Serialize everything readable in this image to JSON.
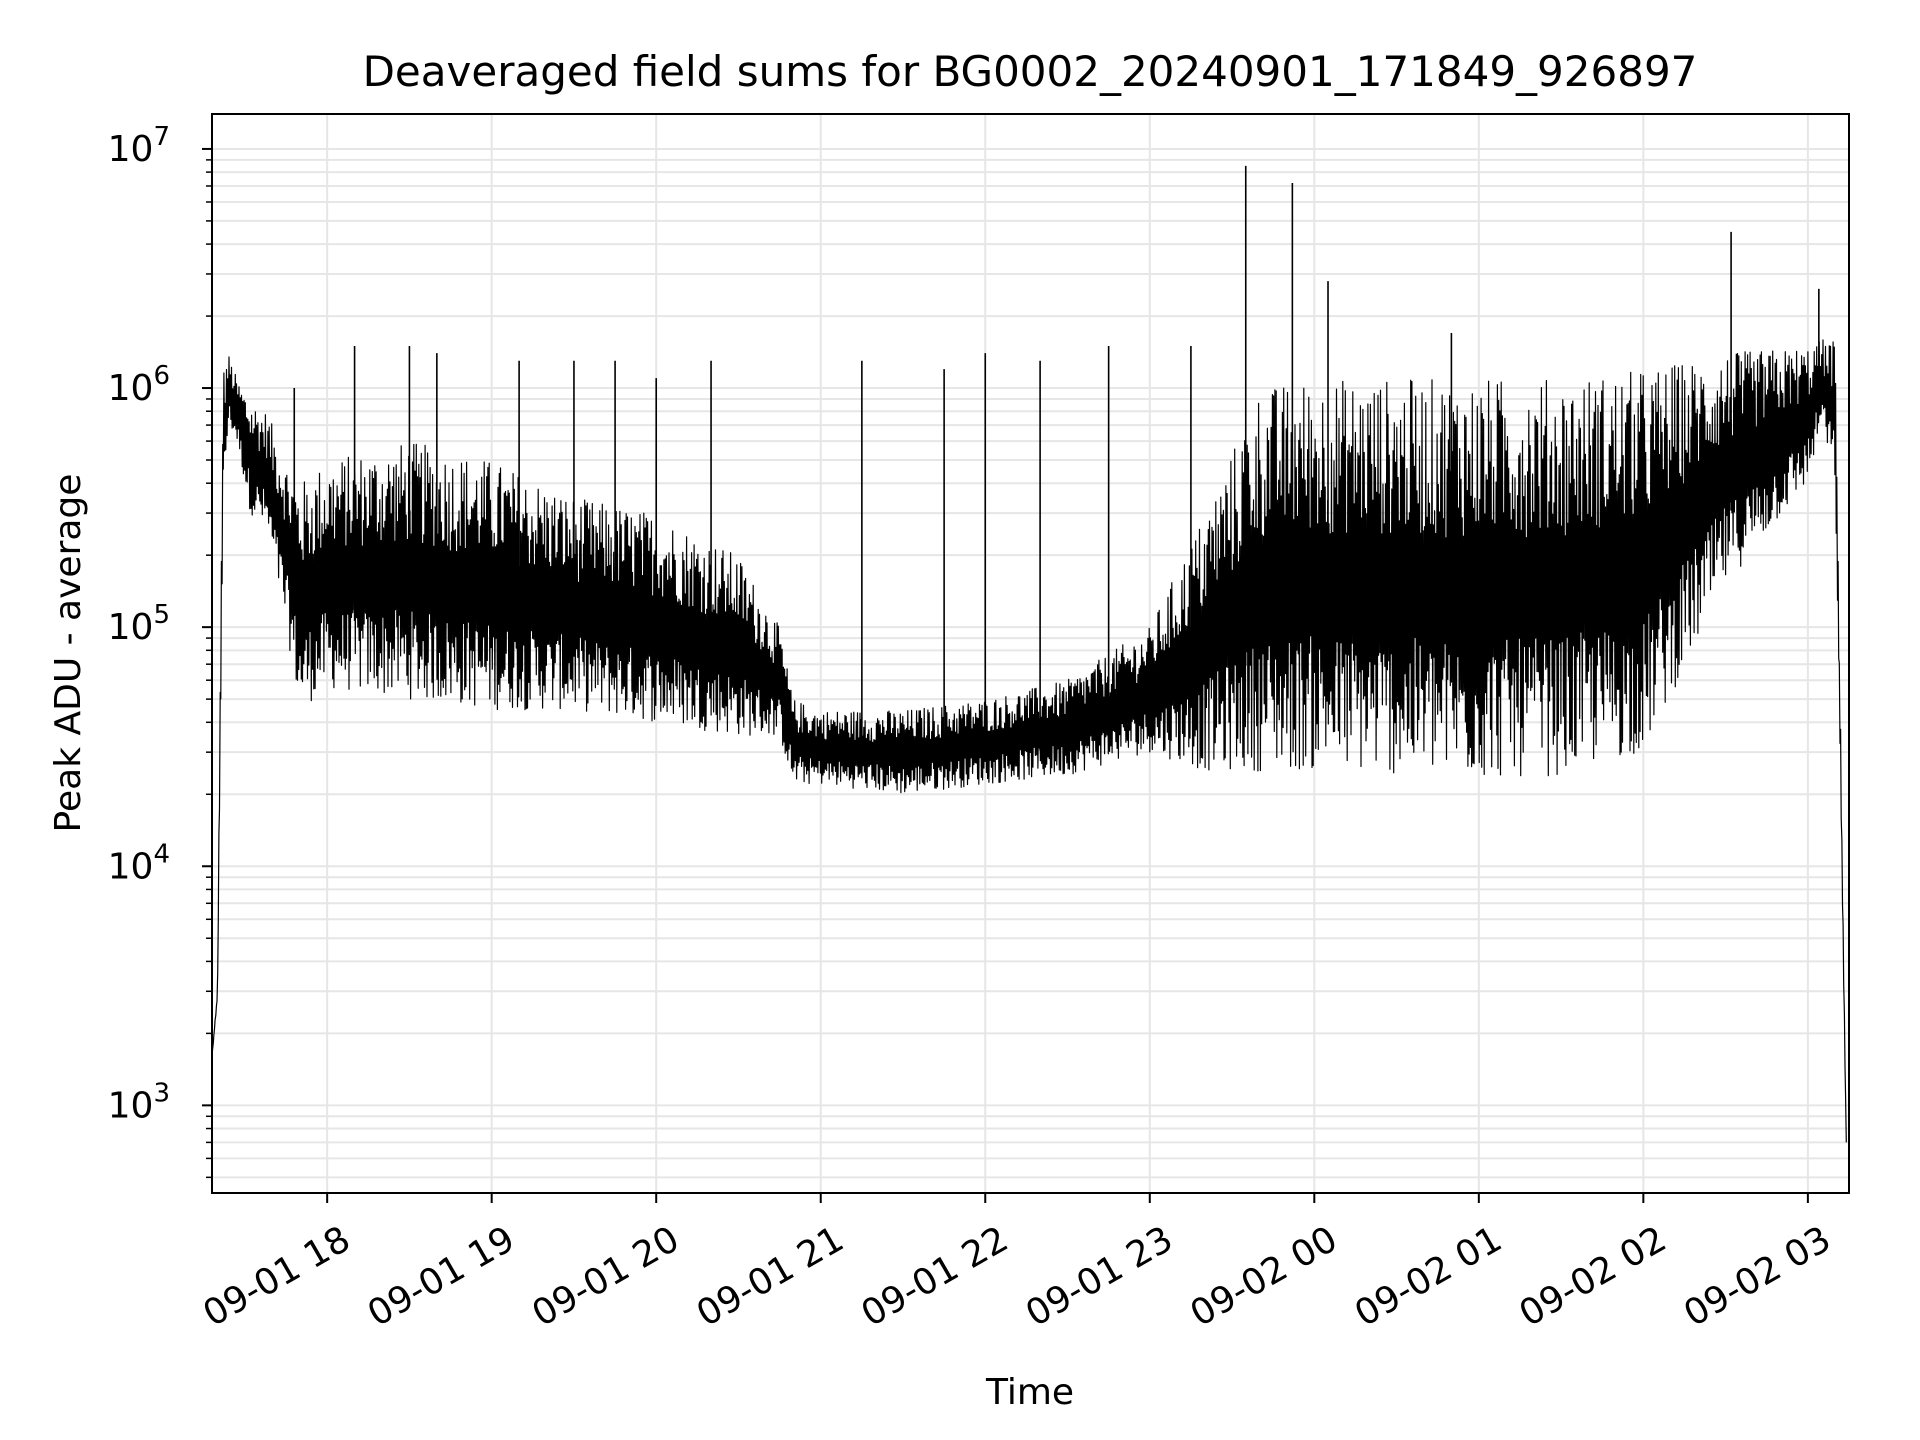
{
  "chart_data": {
    "type": "line",
    "title": "Deaveraged field sums for BG0002_20240901_171849_926897",
    "xlabel": "Time",
    "ylabel": "Peak ADU - average",
    "yscale": "log",
    "ylim": [
      430,
      14000000
    ],
    "xlim": [
      "2024-09-01 17:18",
      "2024-09-02 03:15"
    ],
    "grid": true,
    "legend": "none",
    "line_color": "#000000",
    "grid_color": "#e6e6e6",
    "x_ticks": [
      {
        "value": "2024-09-01 18:00",
        "label": "09-01 18"
      },
      {
        "value": "2024-09-01 19:00",
        "label": "09-01 19"
      },
      {
        "value": "2024-09-01 20:00",
        "label": "09-01 20"
      },
      {
        "value": "2024-09-01 21:00",
        "label": "09-01 21"
      },
      {
        "value": "2024-09-01 22:00",
        "label": "09-01 22"
      },
      {
        "value": "2024-09-01 23:00",
        "label": "09-01 23"
      },
      {
        "value": "2024-09-02 00:00",
        "label": "09-02 00"
      },
      {
        "value": "2024-09-02 01:00",
        "label": "09-02 01"
      },
      {
        "value": "2024-09-02 02:00",
        "label": "09-02 02"
      },
      {
        "value": "2024-09-02 03:00",
        "label": "09-02 03"
      }
    ],
    "y_ticks": [
      {
        "value": 1000,
        "base": "10",
        "exp": "3"
      },
      {
        "value": 10000,
        "base": "10",
        "exp": "4"
      },
      {
        "value": 100000,
        "base": "10",
        "exp": "5"
      },
      {
        "value": 1000000,
        "base": "10",
        "exp": "6"
      },
      {
        "value": 10000000,
        "base": "10",
        "exp": "7"
      }
    ],
    "envelope": [
      {
        "x": "2024-09-01 17:18",
        "low": 1600,
        "high": 1600
      },
      {
        "x": "2024-09-01 17:20",
        "low": 2800,
        "high": 3000
      },
      {
        "x": "2024-09-01 17:22",
        "low": 300000,
        "high": 1200000
      },
      {
        "x": "2024-09-01 17:24",
        "low": 700000,
        "high": 1400000
      },
      {
        "x": "2024-09-01 17:27",
        "low": 600000,
        "high": 1100000
      },
      {
        "x": "2024-09-01 17:32",
        "low": 300000,
        "high": 900000
      },
      {
        "x": "2024-09-01 17:38",
        "low": 250000,
        "high": 800000
      },
      {
        "x": "2024-09-01 17:45",
        "low": 100000,
        "high": 500000
      },
      {
        "x": "2024-09-01 17:50",
        "low": 45000,
        "high": 400000
      },
      {
        "x": "2024-09-01 18:00",
        "low": 55000,
        "high": 500000
      },
      {
        "x": "2024-09-01 18:30",
        "low": 50000,
        "high": 600000
      },
      {
        "x": "2024-09-01 19:00",
        "low": 45000,
        "high": 500000
      },
      {
        "x": "2024-09-01 19:30",
        "low": 45000,
        "high": 350000
      },
      {
        "x": "2024-09-01 20:00",
        "low": 40000,
        "high": 300000
      },
      {
        "x": "2024-09-01 20:30",
        "low": 35000,
        "high": 200000
      },
      {
        "x": "2024-09-01 20:45",
        "low": 35000,
        "high": 100000
      },
      {
        "x": "2024-09-01 20:50",
        "low": 22000,
        "high": 50000
      },
      {
        "x": "2024-09-01 21:00",
        "low": 22000,
        "high": 45000
      },
      {
        "x": "2024-09-01 21:30",
        "low": 20000,
        "high": 45000
      },
      {
        "x": "2024-09-01 22:00",
        "low": 22000,
        "high": 50000
      },
      {
        "x": "2024-09-01 22:30",
        "low": 24000,
        "high": 60000
      },
      {
        "x": "2024-09-01 23:00",
        "low": 30000,
        "high": 100000
      },
      {
        "x": "2024-09-01 23:20",
        "low": 25000,
        "high": 300000
      },
      {
        "x": "2024-09-01 23:40",
        "low": 25000,
        "high": 1000000
      },
      {
        "x": "2024-09-02 00:00",
        "low": 25000,
        "high": 1100000
      },
      {
        "x": "2024-09-02 00:30",
        "low": 24000,
        "high": 1100000
      },
      {
        "x": "2024-09-02 01:00",
        "low": 23000,
        "high": 1100000
      },
      {
        "x": "2024-09-02 01:30",
        "low": 24000,
        "high": 1100000
      },
      {
        "x": "2024-09-02 02:00",
        "low": 30000,
        "high": 1200000
      },
      {
        "x": "2024-09-02 02:30",
        "low": 150000,
        "high": 1400000
      },
      {
        "x": "2024-09-02 03:00",
        "low": 400000,
        "high": 1500000
      },
      {
        "x": "2024-09-02 03:05",
        "low": 700000,
        "high": 1600000
      },
      {
        "x": "2024-09-02 03:10",
        "low": 400000,
        "high": 1600000
      },
      {
        "x": "2024-09-02 03:14",
        "low": 700,
        "high": 700
      }
    ],
    "spikes": [
      {
        "x": "2024-09-01 17:48",
        "y": 1000000
      },
      {
        "x": "2024-09-01 18:10",
        "y": 1500000
      },
      {
        "x": "2024-09-01 18:30",
        "y": 1500000
      },
      {
        "x": "2024-09-01 18:40",
        "y": 1400000
      },
      {
        "x": "2024-09-01 19:10",
        "y": 1300000
      },
      {
        "x": "2024-09-01 19:30",
        "y": 1300000
      },
      {
        "x": "2024-09-01 19:45",
        "y": 1300000
      },
      {
        "x": "2024-09-01 20:00",
        "y": 1100000
      },
      {
        "x": "2024-09-01 20:20",
        "y": 1300000
      },
      {
        "x": "2024-09-01 21:15",
        "y": 1300000
      },
      {
        "x": "2024-09-01 21:45",
        "y": 1200000
      },
      {
        "x": "2024-09-01 22:00",
        "y": 1400000
      },
      {
        "x": "2024-09-01 22:20",
        "y": 1300000
      },
      {
        "x": "2024-09-01 22:45",
        "y": 1500000
      },
      {
        "x": "2024-09-01 23:15",
        "y": 1500000
      },
      {
        "x": "2024-09-01 23:35",
        "y": 8500000
      },
      {
        "x": "2024-09-01 23:52",
        "y": 7200000
      },
      {
        "x": "2024-09-02 00:05",
        "y": 2800000
      },
      {
        "x": "2024-09-02 00:50",
        "y": 1700000
      },
      {
        "x": "2024-09-02 02:32",
        "y": 4500000
      },
      {
        "x": "2024-09-02 03:04",
        "y": 2600000
      }
    ]
  }
}
